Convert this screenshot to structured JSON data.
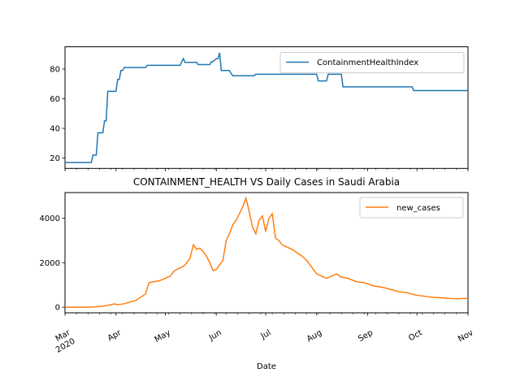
{
  "figure": {
    "xlabel": "Date",
    "x_tick_labels": [
      {
        "date": "2020-03-01",
        "label": "Mar",
        "label2": "2020"
      },
      {
        "date": "2020-04-01",
        "label": "Apr"
      },
      {
        "date": "2020-05-01",
        "label": "May"
      },
      {
        "date": "2020-06-01",
        "label": "Jun"
      },
      {
        "date": "2020-07-01",
        "label": "Jul"
      },
      {
        "date": "2020-08-01",
        "label": "Aug"
      },
      {
        "date": "2020-09-01",
        "label": "Sep"
      },
      {
        "date": "2020-10-01",
        "label": "Oct"
      },
      {
        "date": "2020-11-01",
        "label": "Nov"
      }
    ],
    "x_range": [
      "2020-03-01",
      "2020-11-01"
    ]
  },
  "chart_data": [
    {
      "type": "line",
      "title": "",
      "xlabel": "",
      "ylabel": "",
      "ylim": [
        13,
        95
      ],
      "yticks": [
        20,
        40,
        60,
        80
      ],
      "legend_position": "top-right",
      "series": [
        {
          "name": "ContainmentHealthIndex",
          "color": "#1f77b4",
          "points": [
            [
              "2020-03-01",
              17
            ],
            [
              "2020-03-17",
              17
            ],
            [
              "2020-03-18",
              22
            ],
            [
              "2020-03-20",
              22
            ],
            [
              "2020-03-21",
              37
            ],
            [
              "2020-03-24",
              37
            ],
            [
              "2020-03-25",
              45
            ],
            [
              "2020-03-26",
              45
            ],
            [
              "2020-03-27",
              65
            ],
            [
              "2020-04-01",
              65
            ],
            [
              "2020-04-02",
              73
            ],
            [
              "2020-04-03",
              73
            ],
            [
              "2020-04-04",
              79
            ],
            [
              "2020-04-05",
              79
            ],
            [
              "2020-04-06",
              81
            ],
            [
              "2020-04-19",
              81
            ],
            [
              "2020-04-20",
              82.5
            ],
            [
              "2020-05-10",
              82.5
            ],
            [
              "2020-05-11",
              85
            ],
            [
              "2020-05-12",
              87
            ],
            [
              "2020-05-13",
              84.5
            ],
            [
              "2020-05-20",
              84.5
            ],
            [
              "2020-05-21",
              83
            ],
            [
              "2020-05-27",
              83
            ],
            [
              "2020-05-28",
              83
            ],
            [
              "2020-05-29",
              85
            ],
            [
              "2020-05-30",
              85
            ],
            [
              "2020-05-31",
              86
            ],
            [
              "2020-06-01",
              87
            ],
            [
              "2020-06-02",
              87
            ],
            [
              "2020-06-03",
              91
            ],
            [
              "2020-06-04",
              79
            ],
            [
              "2020-06-09",
              79
            ],
            [
              "2020-06-10",
              77
            ],
            [
              "2020-06-11",
              75.5
            ],
            [
              "2020-06-24",
              75.5
            ],
            [
              "2020-06-25",
              76.5
            ],
            [
              "2020-08-01",
              76.5
            ],
            [
              "2020-08-02",
              72
            ],
            [
              "2020-08-07",
              72
            ],
            [
              "2020-08-08",
              76.5
            ],
            [
              "2020-08-16",
              76.5
            ],
            [
              "2020-08-17",
              68
            ],
            [
              "2020-09-28",
              68
            ],
            [
              "2020-09-29",
              65.5
            ],
            [
              "2020-11-01",
              65.5
            ]
          ]
        }
      ]
    },
    {
      "type": "line",
      "title": "CONTAINMENT_HEALTH VS Daily Cases in Saudi Arabia",
      "xlabel": "Date",
      "ylabel": "",
      "ylim": [
        -250,
        5150
      ],
      "yticks": [
        0,
        2000,
        4000
      ],
      "legend_position": "top-right",
      "series": [
        {
          "name": "new_cases",
          "color": "#ff7f0e",
          "points": [
            [
              "2020-03-01",
              0
            ],
            [
              "2020-03-15",
              0
            ],
            [
              "2020-03-20",
              20
            ],
            [
              "2020-03-25",
              60
            ],
            [
              "2020-03-28",
              100
            ],
            [
              "2020-03-31",
              150
            ],
            [
              "2020-04-02",
              120
            ],
            [
              "2020-04-05",
              140
            ],
            [
              "2020-04-08",
              200
            ],
            [
              "2020-04-10",
              250
            ],
            [
              "2020-04-13",
              300
            ],
            [
              "2020-04-15",
              400
            ],
            [
              "2020-04-17",
              500
            ],
            [
              "2020-04-19",
              600
            ],
            [
              "2020-04-21",
              1100
            ],
            [
              "2020-04-24",
              1150
            ],
            [
              "2020-04-27",
              1180
            ],
            [
              "2020-05-01",
              1300
            ],
            [
              "2020-05-04",
              1400
            ],
            [
              "2020-05-06",
              1600
            ],
            [
              "2020-05-08",
              1700
            ],
            [
              "2020-05-11",
              1800
            ],
            [
              "2020-05-13",
              1900
            ],
            [
              "2020-05-16",
              2200
            ],
            [
              "2020-05-18",
              2800
            ],
            [
              "2020-05-20",
              2600
            ],
            [
              "2020-05-22",
              2650
            ],
            [
              "2020-05-24",
              2500
            ],
            [
              "2020-05-26",
              2300
            ],
            [
              "2020-05-28",
              2000
            ],
            [
              "2020-05-30",
              1650
            ],
            [
              "2020-06-01",
              1700
            ],
            [
              "2020-06-03",
              1900
            ],
            [
              "2020-06-05",
              2100
            ],
            [
              "2020-06-07",
              3000
            ],
            [
              "2020-06-09",
              3300
            ],
            [
              "2020-06-11",
              3700
            ],
            [
              "2020-06-13",
              3900
            ],
            [
              "2020-06-15",
              4200
            ],
            [
              "2020-06-17",
              4500
            ],
            [
              "2020-06-19",
              4900
            ],
            [
              "2020-06-21",
              4300
            ],
            [
              "2020-06-23",
              3600
            ],
            [
              "2020-06-25",
              3300
            ],
            [
              "2020-06-27",
              3900
            ],
            [
              "2020-06-29",
              4100
            ],
            [
              "2020-07-01",
              3400
            ],
            [
              "2020-07-03",
              4000
            ],
            [
              "2020-07-05",
              4200
            ],
            [
              "2020-07-07",
              3100
            ],
            [
              "2020-07-09",
              3000
            ],
            [
              "2020-07-11",
              2800
            ],
            [
              "2020-07-14",
              2700
            ],
            [
              "2020-07-17",
              2600
            ],
            [
              "2020-07-20",
              2450
            ],
            [
              "2020-07-23",
              2300
            ],
            [
              "2020-07-26",
              2100
            ],
            [
              "2020-07-29",
              1800
            ],
            [
              "2020-08-01",
              1500
            ],
            [
              "2020-08-04",
              1400
            ],
            [
              "2020-08-07",
              1300
            ],
            [
              "2020-08-10",
              1400
            ],
            [
              "2020-08-13",
              1500
            ],
            [
              "2020-08-16",
              1350
            ],
            [
              "2020-08-20",
              1300
            ],
            [
              "2020-08-25",
              1150
            ],
            [
              "2020-08-30",
              1100
            ],
            [
              "2020-09-05",
              950
            ],
            [
              "2020-09-10",
              900
            ],
            [
              "2020-09-15",
              800
            ],
            [
              "2020-09-20",
              700
            ],
            [
              "2020-09-25",
              650
            ],
            [
              "2020-09-30",
              550
            ],
            [
              "2020-10-05",
              500
            ],
            [
              "2020-10-10",
              450
            ],
            [
              "2020-10-15",
              430
            ],
            [
              "2020-10-20",
              400
            ],
            [
              "2020-10-25",
              380
            ],
            [
              "2020-11-01",
              400
            ]
          ]
        }
      ]
    }
  ]
}
